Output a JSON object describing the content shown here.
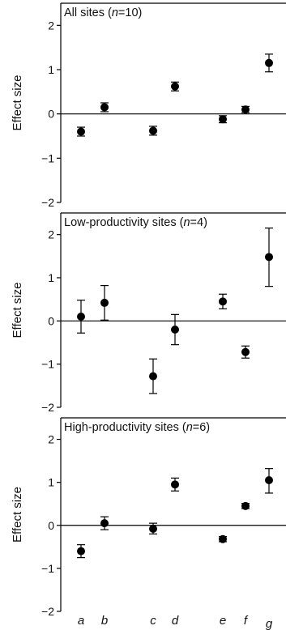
{
  "chart_data": {
    "type": "scatter",
    "x_categories": [
      "a",
      "b",
      "c",
      "d",
      "e",
      "f",
      "g"
    ],
    "ylim": [
      -2,
      2.5
    ],
    "yticks": [
      -2,
      -1,
      0,
      1,
      2
    ],
    "ytick_labels": [
      "−2",
      "−1",
      "0",
      "1",
      "2"
    ],
    "panels": [
      {
        "title_prefix": "All sites (",
        "title_italic": "n",
        "title_suffix": "=10)",
        "ylabel": "Effect size",
        "points": [
          {
            "category": "a",
            "mean": -0.4,
            "low": -0.5,
            "high": -0.3
          },
          {
            "category": "b",
            "mean": 0.15,
            "low": 0.05,
            "high": 0.25
          },
          {
            "category": "c",
            "mean": -0.38,
            "low": -0.48,
            "high": -0.28
          },
          {
            "category": "d",
            "mean": 0.62,
            "low": 0.52,
            "high": 0.72
          },
          {
            "category": "e",
            "mean": -0.12,
            "low": -0.2,
            "high": -0.04
          },
          {
            "category": "f",
            "mean": 0.1,
            "low": 0.03,
            "high": 0.17
          },
          {
            "category": "g",
            "mean": 1.15,
            "low": 0.95,
            "high": 1.35
          }
        ]
      },
      {
        "title_prefix": "Low-productivity sites (",
        "title_italic": "n",
        "title_suffix": "=4)",
        "ylabel": "Effect size",
        "points": [
          {
            "category": "a",
            "mean": 0.1,
            "low": -0.28,
            "high": 0.48
          },
          {
            "category": "b",
            "mean": 0.42,
            "low": 0.02,
            "high": 0.82
          },
          {
            "category": "c",
            "mean": -1.28,
            "low": -1.68,
            "high": -0.88
          },
          {
            "category": "d",
            "mean": -0.2,
            "low": -0.55,
            "high": 0.15
          },
          {
            "category": "e",
            "mean": 0.45,
            "low": 0.28,
            "high": 0.62
          },
          {
            "category": "f",
            "mean": -0.72,
            "low": -0.86,
            "high": -0.58
          },
          {
            "category": "g",
            "mean": 1.48,
            "low": 0.8,
            "high": 2.15
          }
        ]
      },
      {
        "title_prefix": "High-productivity sites (",
        "title_italic": "n",
        "title_suffix": "=6)",
        "ylabel": "Effect size",
        "points": [
          {
            "category": "a",
            "mean": -0.6,
            "low": -0.75,
            "high": -0.45
          },
          {
            "category": "b",
            "mean": 0.05,
            "low": -0.1,
            "high": 0.2
          },
          {
            "category": "c",
            "mean": -0.08,
            "low": -0.2,
            "high": 0.05
          },
          {
            "category": "d",
            "mean": 0.95,
            "low": 0.8,
            "high": 1.1
          },
          {
            "category": "e",
            "mean": -0.32,
            "low": -0.38,
            "high": -0.26
          },
          {
            "category": "f",
            "mean": 0.45,
            "low": 0.39,
            "high": 0.51
          },
          {
            "category": "g",
            "mean": 1.05,
            "low": 0.75,
            "high": 1.32
          }
        ]
      }
    ],
    "zero_line": 0,
    "grid": false,
    "legend": "none"
  }
}
